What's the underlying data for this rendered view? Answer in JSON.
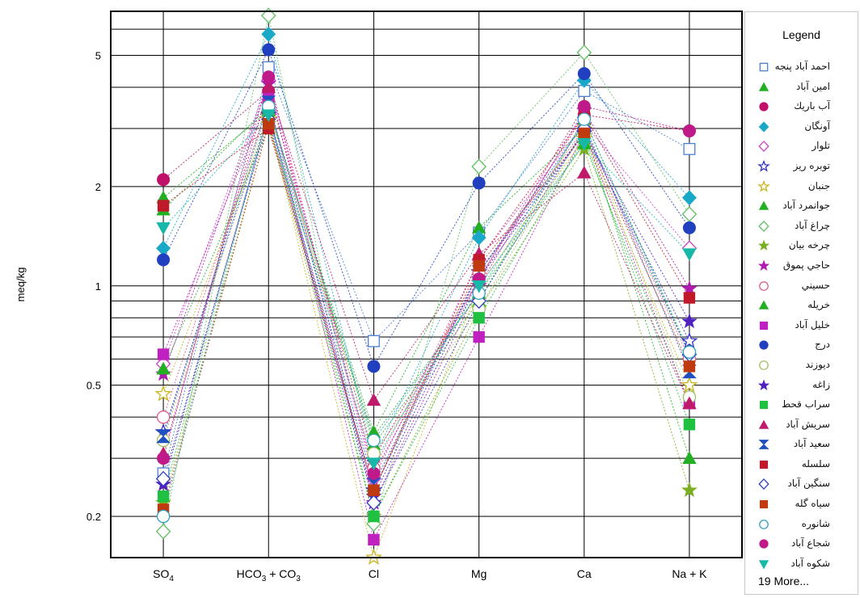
{
  "chart_data": {
    "type": "line",
    "subtype": "schoeller",
    "ylabel": "meq/kg",
    "y_scale": "log",
    "ylim": [
      0.15,
      6.8
    ],
    "y_ticks": [
      {
        "value": 0.2,
        "label": "0.2"
      },
      {
        "value": 0.5,
        "label": "0.5"
      },
      {
        "value": 1,
        "label": "1"
      },
      {
        "value": 2,
        "label": "2"
      },
      {
        "value": 5,
        "label": "5"
      }
    ],
    "categories": [
      {
        "main": "SO",
        "sub": "4"
      },
      {
        "main": "HCO",
        "sub": "3",
        "mid": " + CO",
        "sub2": "3"
      },
      {
        "main": "Cl"
      },
      {
        "main": "Mg"
      },
      {
        "main": "Ca"
      },
      {
        "main": "Na + K"
      }
    ],
    "grid": true,
    "legend": {
      "title": "Legend",
      "position": "right",
      "more_label": "19 More..."
    },
    "series": [
      {
        "name": "احمد آباد پنجه",
        "color": "#4a7fd4",
        "marker": "square-open",
        "values": [
          0.27,
          4.6,
          0.68,
          1.45,
          3.9,
          2.6
        ]
      },
      {
        "name": "امين آباد",
        "color": "#22b022",
        "marker": "triangle",
        "values": [
          1.85,
          3.4,
          0.36,
          1.5,
          3.0,
          0.3
        ]
      },
      {
        "name": "آب باريك",
        "color": "#c0106a",
        "marker": "circle",
        "values": [
          2.1,
          3.9,
          0.3,
          1.05,
          3.3,
          2.95
        ]
      },
      {
        "name": "آونگان",
        "color": "#1aa8c8",
        "marker": "diamond",
        "values": [
          1.3,
          5.8,
          0.3,
          1.4,
          4.2,
          1.85
        ]
      },
      {
        "name": "تلوار",
        "color": "#cc44cc",
        "marker": "diamond-open",
        "values": [
          0.58,
          4.2,
          0.26,
          1.2,
          3.1,
          1.3
        ]
      },
      {
        "name": "توبره ريز",
        "color": "#3030c8",
        "marker": "star-open",
        "values": [
          0.36,
          3.3,
          0.24,
          1.1,
          2.9,
          0.68
        ]
      },
      {
        "name": "جنبان",
        "color": "#c8b41a",
        "marker": "star-open",
        "values": [
          0.47,
          3.2,
          0.15,
          1.0,
          2.8,
          0.5
        ]
      },
      {
        "name": "جوانمرد آباد",
        "color": "#22b022",
        "marker": "triangle",
        "values": [
          1.7,
          3.5,
          0.33,
          0.9,
          3.2,
          0.62
        ]
      },
      {
        "name": "چراغ آباد",
        "color": "#60c060",
        "marker": "diamond-open",
        "values": [
          0.18,
          6.6,
          0.19,
          2.3,
          5.1,
          1.65
        ]
      },
      {
        "name": "چرخه بيان",
        "color": "#7ab020",
        "marker": "star",
        "values": [
          0.22,
          3.1,
          0.2,
          0.85,
          2.6,
          0.24
        ]
      },
      {
        "name": "حاجي پموق",
        "color": "#b01ab0",
        "marker": "star",
        "values": [
          0.54,
          4.1,
          0.22,
          1.0,
          3.4,
          0.98
        ]
      },
      {
        "name": "حسيني",
        "color": "#e05a8a",
        "marker": "circle-open",
        "values": [
          0.4,
          3.6,
          0.28,
          1.1,
          3.0,
          0.6
        ]
      },
      {
        "name": "خريله",
        "color": "#22b022",
        "marker": "triangle",
        "values": [
          0.56,
          3.0,
          0.35,
          0.95,
          2.7,
          0.44
        ]
      },
      {
        "name": "خليل آباد",
        "color": "#c020c0",
        "marker": "square",
        "values": [
          0.62,
          3.7,
          0.17,
          0.7,
          2.9,
          0.44
        ]
      },
      {
        "name": "درج",
        "color": "#2040c0",
        "marker": "circle",
        "values": [
          1.2,
          5.2,
          0.57,
          2.05,
          4.4,
          1.5
        ]
      },
      {
        "name": "ديوزند",
        "color": "#a0c060",
        "marker": "circle-open",
        "values": [
          0.34,
          3.5,
          0.31,
          0.85,
          3.0,
          0.46
        ]
      },
      {
        "name": "زاغه",
        "color": "#5020c0",
        "marker": "star",
        "values": [
          0.25,
          3.3,
          0.23,
          1.05,
          2.9,
          0.78
        ]
      },
      {
        "name": "سراب قحط",
        "color": "#20c040",
        "marker": "square",
        "values": [
          0.23,
          3.4,
          0.2,
          0.8,
          2.8,
          0.38
        ]
      },
      {
        "name": "سريش آباد",
        "color": "#c01a6a",
        "marker": "triangle",
        "values": [
          0.31,
          4.0,
          0.45,
          1.25,
          2.2,
          0.44
        ]
      },
      {
        "name": "سعيد آباد",
        "color": "#2050c0",
        "marker": "hourglass",
        "values": [
          0.35,
          3.6,
          0.25,
          1.1,
          3.1,
          0.55
        ]
      },
      {
        "name": "سلسله",
        "color": "#c01a2a",
        "marker": "square",
        "values": [
          1.75,
          3.0,
          0.24,
          1.2,
          3.3,
          0.92
        ]
      },
      {
        "name": "سنگين آباد",
        "color": "#3040c0",
        "marker": "diamond-open",
        "values": [
          0.26,
          3.2,
          0.22,
          0.9,
          3.0,
          0.62
        ]
      },
      {
        "name": "سياه گله",
        "color": "#c03a10",
        "marker": "square",
        "values": [
          0.21,
          3.1,
          0.24,
          1.15,
          2.9,
          0.57
        ]
      },
      {
        "name": "شانوره",
        "color": "#30a0c0",
        "marker": "circle-open",
        "values": [
          0.2,
          3.5,
          0.34,
          0.95,
          3.2,
          0.63
        ]
      },
      {
        "name": "شجاع آباد",
        "color": "#c01a8a",
        "marker": "circle",
        "values": [
          0.3,
          4.3,
          0.27,
          1.05,
          3.5,
          2.95
        ]
      },
      {
        "name": "شكوه آباد",
        "color": "#18b8a8",
        "marker": "triangle-down",
        "values": [
          1.5,
          3.3,
          0.29,
          1.0,
          2.7,
          1.25
        ]
      }
    ]
  }
}
